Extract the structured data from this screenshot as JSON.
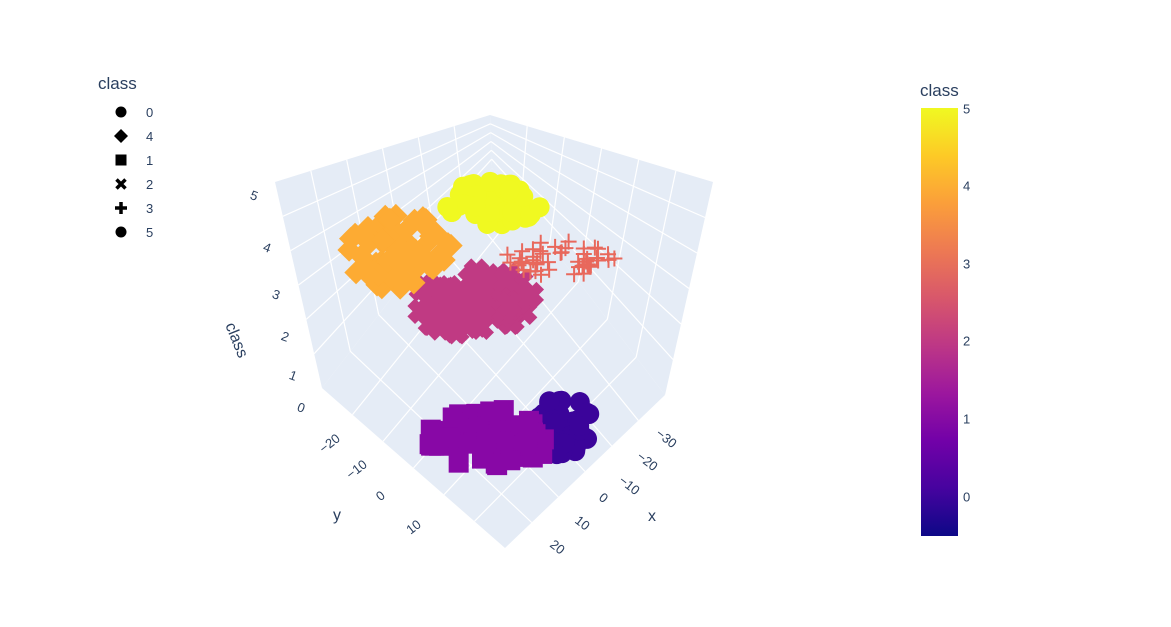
{
  "legend": {
    "title": "class",
    "items": [
      {
        "label": "0",
        "symbol": "circle"
      },
      {
        "label": "4",
        "symbol": "diamond"
      },
      {
        "label": "1",
        "symbol": "square"
      },
      {
        "label": "2",
        "symbol": "x"
      },
      {
        "label": "3",
        "symbol": "cross"
      },
      {
        "label": "5",
        "symbol": "circle"
      }
    ]
  },
  "colorbar": {
    "title": "class",
    "ticks": [
      "5",
      "4",
      "3",
      "2",
      "1",
      "0"
    ],
    "colors": [
      "#0d0887",
      "#46039f",
      "#7201a8",
      "#9c179e",
      "#bd3786",
      "#d8576b",
      "#ed7953",
      "#fb9f3a",
      "#fdca26",
      "#f0f921"
    ]
  },
  "chart_data": {
    "type": "scatter3d",
    "xlabel": "x",
    "ylabel": "y",
    "zlabel": "class",
    "x_ticks": [
      "−30",
      "−20",
      "−10",
      "0",
      "10",
      "20"
    ],
    "y_ticks": [
      "−20",
      "−10",
      "0",
      "10"
    ],
    "z_ticks": [
      "0",
      "1",
      "2",
      "3",
      "4",
      "5"
    ],
    "series": [
      {
        "name": "0",
        "symbol": "circle",
        "z": 0,
        "color": "#3b049a"
      },
      {
        "name": "1",
        "symbol": "square",
        "z": 1,
        "color": "#8808a6"
      },
      {
        "name": "2",
        "symbol": "x",
        "z": 2,
        "color": "#c03a83"
      },
      {
        "name": "3",
        "symbol": "cross",
        "z": 3,
        "color": "#e8685c"
      },
      {
        "name": "4",
        "symbol": "diamond",
        "z": 4,
        "color": "#fdab33"
      },
      {
        "name": "5",
        "symbol": "circle",
        "z": 5,
        "color": "#f0f921"
      }
    ]
  }
}
